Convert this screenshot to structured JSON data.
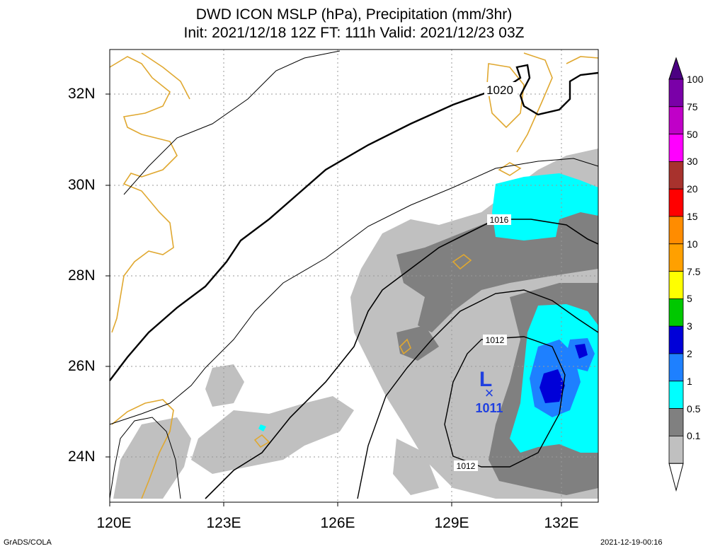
{
  "title": {
    "line1": "DWD ICON MSLP (hPa), Precipitation (mm/3hr)",
    "line2": "Init: 2021/12/18 12Z  FT: 111h  Valid: 2021/12/23 03Z"
  },
  "axes": {
    "lat_labels": [
      "32N",
      "30N",
      "28N",
      "26N",
      "24N"
    ],
    "lon_labels": [
      "120E",
      "123E",
      "126E",
      "129E",
      "132E"
    ]
  },
  "isobars": {
    "label_1020": "1020",
    "label_1016": "1016",
    "label_1012_a": "1012",
    "label_1012_b": "1012"
  },
  "low": {
    "symbol": "L",
    "marker": "×",
    "pressure": "1011"
  },
  "colorbar": {
    "labels": [
      "100",
      "75",
      "50",
      "30",
      "20",
      "15",
      "10",
      "7.5",
      "5",
      "3",
      "2",
      "1",
      "0.5",
      "0.1"
    ],
    "colors": [
      "#7a00a8",
      "#c000c8",
      "#ff00ff",
      "#a8322d",
      "#ff0000",
      "#ff8c00",
      "#ffa000",
      "#ffff00",
      "#00c800",
      "#0000d8",
      "#1e80ff",
      "#00ffff",
      "#808080",
      "#c0c0c0"
    ]
  },
  "colors": {
    "coastline": "#e0a830",
    "isobar": "#000000",
    "low_marker": "#2040e0"
  },
  "footer": {
    "left": "GrADS/COLA",
    "right": "2021-12-19-00:16"
  }
}
